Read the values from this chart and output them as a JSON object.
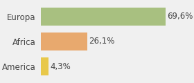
{
  "categories": [
    "America",
    "Africa",
    "Europa"
  ],
  "values": [
    4.3,
    26.1,
    69.6
  ],
  "colors": [
    "#e8c84a",
    "#e8a96e",
    "#a8c080"
  ],
  "labels": [
    "4,3%",
    "26,1%",
    "69,6%"
  ],
  "xlim": [
    0,
    82
  ],
  "bar_height": 0.72,
  "background_color": "#f0f0f0",
  "label_fontsize": 8.5,
  "tick_fontsize": 8.5,
  "label_color": "#444444",
  "tick_color": "#444444"
}
